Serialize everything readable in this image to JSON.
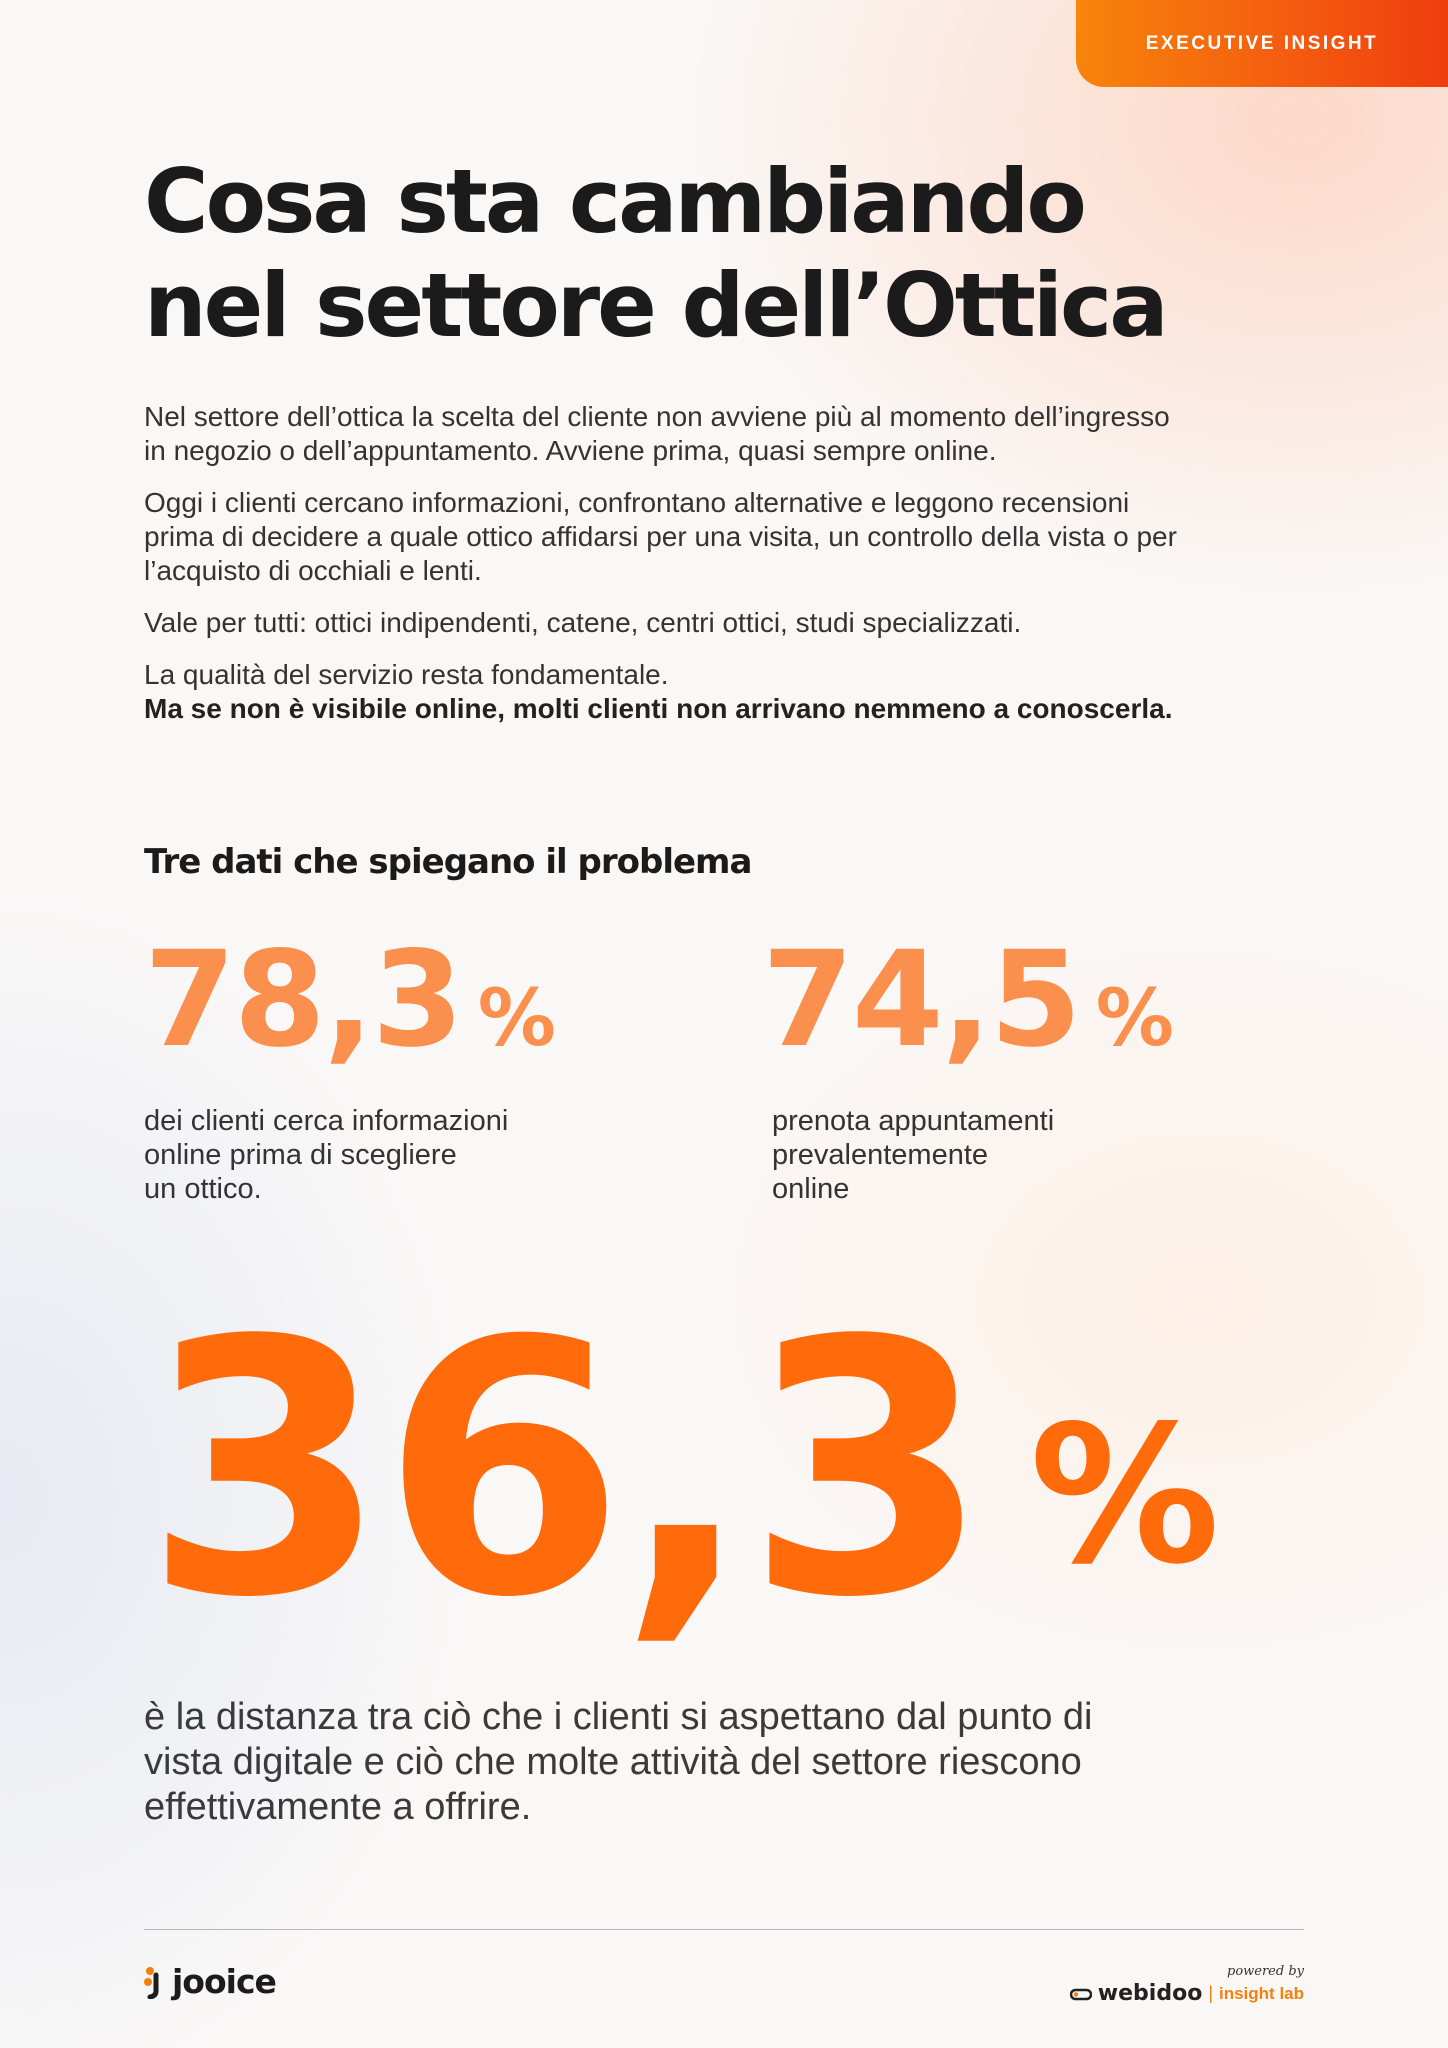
{
  "badge": "EXECUTIVE INSIGHT",
  "title": {
    "line1": "Cosa sta cambiando",
    "line2": "nel settore dell’Ottica"
  },
  "intro": {
    "p1_line1": "Nel settore dell’ottica la scelta del cliente non avviene più al momento dell’ingresso",
    "p1_line2": "in negozio o dell’appuntamento. Avviene prima, quasi sempre online.",
    "p2_line1": "Oggi i clienti cercano informazioni, confrontano alternative e leggono recensioni",
    "p2_line2": "prima di decidere a quale ottico affidarsi per una visita, un controllo della vista o per",
    "p2_line3": "l’acquisto di occhiali e lenti.",
    "p3": "Vale per tutti: ottici indipendenti, catene, centri ottici, studi specializzati.",
    "p4_line1": "La qualità del servizio resta fondamentale.",
    "p4_line2": "Ma se non è visibile online, molti clienti non arrivano nemmeno a conoscerla."
  },
  "section_heading": "Tre dati che spiegano il problema",
  "stats": [
    {
      "value": "78,3",
      "unit": "%",
      "desc_line1": "dei clienti cerca informazioni",
      "desc_line2": "online prima di scegliere",
      "desc_line3": "un ottico."
    },
    {
      "value": "74,5",
      "unit": "%",
      "desc_line1": "prenota appuntamenti",
      "desc_line2": "prevalentemente",
      "desc_line3": "online"
    }
  ],
  "big_stat": {
    "value": "36,3",
    "unit": "%",
    "desc_line1": "è la distanza tra ciò che i clienti si aspettano dal punto di",
    "desc_line2": "vista digitale e ciò che molte attività del settore riescono",
    "desc_line3": "effettivamente a offrire."
  },
  "footer": {
    "left_logo": "jooice",
    "powered_by": "powered by",
    "right_logo": "webidoo",
    "right_separator": "|",
    "right_sub": "insight lab"
  },
  "colors": {
    "accent": "#ff6a0a",
    "accent_light": "#fb8f4e",
    "badge_start": "#f7840b",
    "badge_end": "#ef3d0d"
  }
}
